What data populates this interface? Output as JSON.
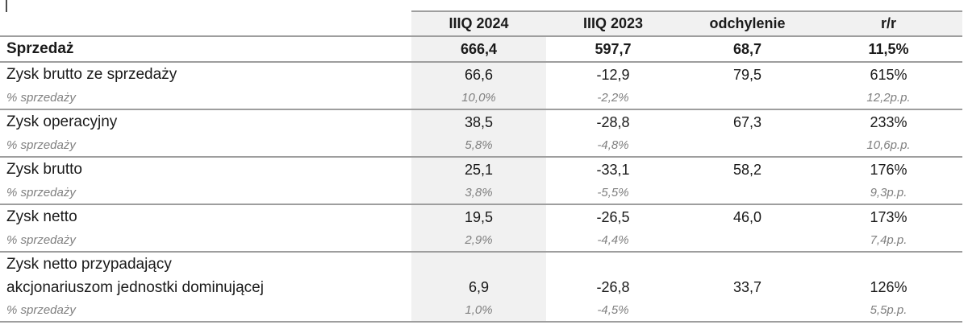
{
  "chart_data": {
    "type": "table",
    "title": "",
    "columns": [
      "IIIQ 2024",
      "IIIQ 2023",
      "odchylenie",
      "r/r"
    ],
    "highlighted_column": "IIIQ 2024",
    "rows": [
      {
        "label": "Sprzedaż",
        "style": "bold",
        "values": [
          "666,4",
          "597,7",
          "68,7",
          "11,5%"
        ]
      },
      {
        "label": "Zysk brutto ze sprzedaży",
        "values": [
          "66,6",
          "-12,9",
          "79,5",
          "615%"
        ],
        "sub": {
          "label": "% sprzedaży",
          "values": [
            "10,0%",
            "-2,2%",
            "",
            "12,2p.p."
          ]
        }
      },
      {
        "label": "Zysk operacyjny",
        "values": [
          "38,5",
          "-28,8",
          "67,3",
          "233%"
        ],
        "sub": {
          "label": "% sprzedaży",
          "values": [
            "5,8%",
            "-4,8%",
            "",
            "10,6p.p."
          ]
        }
      },
      {
        "label": "Zysk brutto",
        "values": [
          "25,1",
          "-33,1",
          "58,2",
          "176%"
        ],
        "sub": {
          "label": "% sprzedaży",
          "values": [
            "3,8%",
            "-5,5%",
            "",
            "9,3p.p."
          ]
        }
      },
      {
        "label": "Zysk netto",
        "values": [
          "19,5",
          "-26,5",
          "46,0",
          "173%"
        ],
        "sub": {
          "label": "% sprzedaży",
          "values": [
            "2,9%",
            "-4,4%",
            "",
            "7,4p.p."
          ]
        }
      },
      {
        "label_line1": "Zysk netto przypadający",
        "label_line2": "akcjonariuszom jednostki dominującej",
        "values": [
          "6,9",
          "-26,8",
          "33,7",
          "126%"
        ],
        "sub": {
          "label": "% sprzedaży",
          "values": [
            "1,0%",
            "-4,5%",
            "",
            "5,5p.p."
          ]
        }
      }
    ]
  },
  "colors": {
    "column_band": "#f1f1f1",
    "border_line": "#9e9e9e",
    "sub_text": "#808080",
    "main_text": "#1a1a1a"
  }
}
